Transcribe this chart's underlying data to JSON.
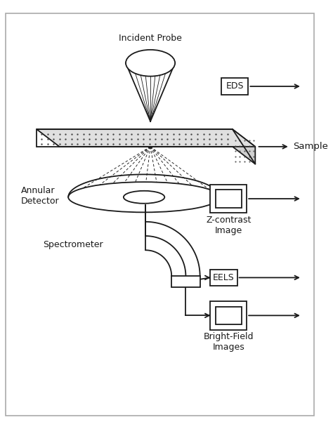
{
  "bg_color": "#ffffff",
  "line_color": "#1a1a1a",
  "lw": 1.3,
  "fig_width": 4.74,
  "fig_height": 6.11,
  "dpi": 100,
  "labels": {
    "incident_probe": "Incident Probe",
    "sample": "Sample",
    "annular_detector": "Annular\nDetector",
    "spectrometer": "Spectrometer",
    "eds": "EDS",
    "eels": "EELS",
    "zcontrast": "Z-contrast\nImage",
    "brightfield": "Bright-Field\nImages"
  }
}
